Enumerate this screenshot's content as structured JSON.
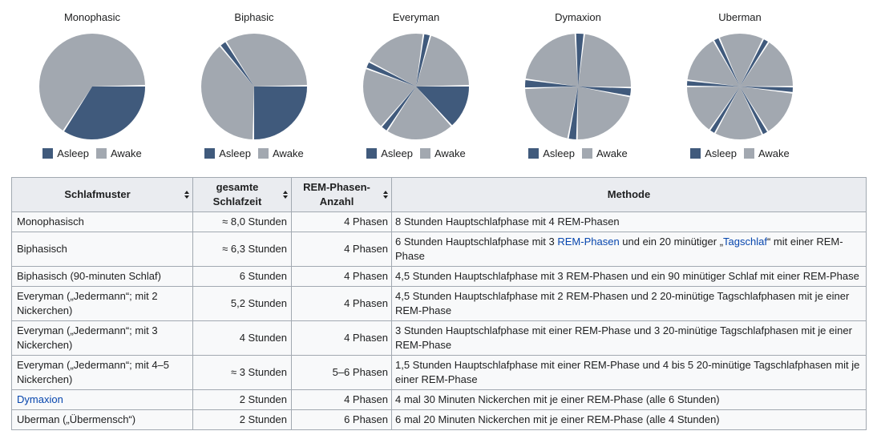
{
  "colors": {
    "asleep": "#405a7c",
    "awake": "#a2a8b0",
    "gap": "#ffffff",
    "link": "#0645ad",
    "table_border": "#a2a9b1",
    "header_bg": "#eaecf0",
    "cell_bg": "#f8f9fa",
    "text": "#202122"
  },
  "legend": {
    "asleep_label": "Asleep",
    "awake_label": "Awake"
  },
  "chart_data": [
    {
      "type": "pie",
      "title": "Monophasic",
      "units": "hours per 24h day",
      "series": [
        {
          "name": "Asleep",
          "value": 8.0
        },
        {
          "name": "Awake",
          "value": 16.0
        }
      ],
      "legend": [
        "Asleep",
        "Awake"
      ],
      "legend_position": "bottom",
      "segments_deg": [
        [
          90,
          212
        ]
      ]
    },
    {
      "type": "pie",
      "title": "Biphasic",
      "units": "hours per 24h day",
      "series": [
        {
          "name": "Asleep",
          "value": 6.3
        },
        {
          "name": "Awake",
          "value": 17.7
        }
      ],
      "legend": [
        "Asleep",
        "Awake"
      ],
      "legend_position": "bottom",
      "segments_deg": [
        [
          90,
          180
        ],
        [
          321,
          327
        ]
      ]
    },
    {
      "type": "pie",
      "title": "Everyman",
      "units": "hours per 24h day",
      "series": [
        {
          "name": "Asleep",
          "value": 4.0
        },
        {
          "name": "Awake",
          "value": 20.0
        }
      ],
      "legend": [
        "Asleep",
        "Awake"
      ],
      "legend_position": "bottom",
      "segments_deg": [
        [
          90,
          137
        ],
        [
          214,
          220
        ],
        [
          291,
          297
        ],
        [
          9,
          15
        ]
      ]
    },
    {
      "type": "pie",
      "title": "Dymaxion",
      "units": "hours per 24h day",
      "series": [
        {
          "name": "Asleep",
          "value": 2.0
        },
        {
          "name": "Awake",
          "value": 22.0
        }
      ],
      "legend": [
        "Asleep",
        "Awake"
      ],
      "legend_position": "bottom",
      "segments_deg": [
        [
          358,
          366
        ],
        [
          92,
          100
        ],
        [
          182,
          190
        ],
        [
          269,
          277
        ]
      ]
    },
    {
      "type": "pie",
      "title": "Uberman",
      "units": "hours per 24h day",
      "series": [
        {
          "name": "Asleep",
          "value": 2.0
        },
        {
          "name": "Awake",
          "value": 22.0
        }
      ],
      "legend": [
        "Asleep",
        "Awake"
      ],
      "legend_position": "bottom",
      "segments_deg": [
        [
          27,
          32
        ],
        [
          91,
          96
        ],
        [
          149,
          154
        ],
        [
          209,
          214
        ],
        [
          271,
          276
        ],
        [
          331,
          336
        ]
      ]
    }
  ],
  "table": {
    "headers": [
      {
        "label": "Schlafmuster",
        "sortable": true
      },
      {
        "label": "gesamte\nSchlafzeit",
        "sortable": true
      },
      {
        "label": "REM-Phasen-\nAnzahl",
        "sortable": true
      },
      {
        "label": "Methode",
        "sortable": false
      }
    ],
    "rows": [
      {
        "muster": "Monophasisch",
        "zeit": "≈ 8,0 Stunden",
        "phasen": "4 Phasen",
        "methode": "8 Stunden Hauptschlafphase mit 4 REM-Phasen"
      },
      {
        "muster": "Biphasisch",
        "zeit": "≈ 6,3 Stunden",
        "phasen": "4 Phasen",
        "methode": [
          {
            "t": "6 Stunden Hauptschlafphase mit 3 "
          },
          {
            "t": "REM-Phasen",
            "link": true
          },
          {
            "t": " und ein 20 minütiger „"
          },
          {
            "t": "Tagschlaf",
            "link": true
          },
          {
            "t": "“ mit einer REM-Phase"
          }
        ]
      },
      {
        "muster": "Biphasisch (90-minuten Schlaf)",
        "zeit": "6 Stunden",
        "phasen": "4 Phasen",
        "methode": "4,5 Stunden Hauptschlafphase mit 3 REM-Phasen und ein 90 minütiger Schlaf mit einer REM-Phase"
      },
      {
        "muster": "Everyman („Jedermann“; mit 2 Nickerchen)",
        "zeit": "5,2 Stunden",
        "phasen": "4 Phasen",
        "methode": "4,5 Stunden Hauptschlafphase mit 2 REM-Phasen und 2 20-minütige Tagschlafphasen mit je einer REM-Phase"
      },
      {
        "muster": "Everyman („Jedermann“; mit 3 Nickerchen)",
        "zeit": "4 Stunden",
        "phasen": "4 Phasen",
        "methode": "3 Stunden Hauptschlafphase mit einer REM-Phase und 3 20-minütige Tagschlafphasen mit je einer REM-Phase"
      },
      {
        "muster": "Everyman („Jedermann“; mit 4–5 Nickerchen)",
        "zeit": "≈ 3 Stunden",
        "phasen": "5–6 Phasen",
        "methode": "1,5 Stunden Hauptschlafphase mit einer REM-Phase und 4 bis 5 20-minütige Tagschlafphasen mit je einer REM-Phase"
      },
      {
        "muster": [
          {
            "t": "Dymaxion",
            "link": true
          }
        ],
        "zeit": "2 Stunden",
        "phasen": "4 Phasen",
        "methode": "4 mal 30 Minuten Nickerchen mit je einer REM-Phase (alle 6 Stunden)"
      },
      {
        "muster": "Uberman („Übermensch“)",
        "zeit": "2 Stunden",
        "phasen": "6 Phasen",
        "methode": "6 mal 20 Minuten Nickerchen mit je einer REM-Phase (alle 4 Stunden)"
      }
    ]
  }
}
